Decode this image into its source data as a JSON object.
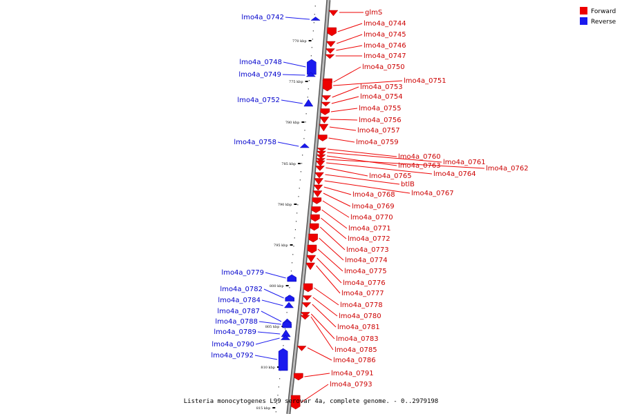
{
  "caption": "Listeria monocytogenes L99 serovar 4a, complete genome. - 0..2979198",
  "legend": [
    {
      "label": "Forward",
      "color": "#ee0000"
    },
    {
      "label": "Reverse",
      "color": "#1a1aee"
    }
  ],
  "colors": {
    "forward": "#ee0000",
    "reverse": "#1a1aee",
    "backbone": "#888888"
  },
  "scale_ticks": [
    "770 kbp",
    "775 kbp",
    "780 kbp",
    "785 kbp",
    "790 kbp",
    "795 kbp",
    "800 kbp",
    "805 kbp",
    "810 kbp",
    "815 kbp"
  ],
  "forward_genes": [
    "glmS",
    "lmo4a_0744",
    "lmo4a_0745",
    "lmo4a_0746",
    "lmo4a_0747",
    "lmo4a_0750",
    "lmo4a_0751",
    "lmo4a_0753",
    "lmo4a_0754",
    "lmo4a_0755",
    "lmo4a_0756",
    "lmo4a_0757",
    "lmo4a_0759",
    "lmo4a_0760",
    "lmo4a_0761",
    "lmo4a_0763",
    "lmo4a_0762",
    "lmo4a_0764",
    "lmo4a_0765",
    "btlB",
    "lmo4a_0767",
    "lmo4a_0768",
    "lmo4a_0769",
    "lmo4a_0770",
    "lmo4a_0771",
    "lmo4a_0772",
    "lmo4a_0773",
    "lmo4a_0774",
    "lmo4a_0775",
    "lmo4a_0776",
    "lmo4a_0777",
    "lmo4a_0778",
    "lmo4a_0780",
    "lmo4a_0781",
    "lmo4a_0783",
    "lmo4a_0785",
    "lmo4a_0786",
    "lmo4a_0791",
    "lmo4a_0793"
  ],
  "reverse_genes": [
    "lmo4a_0742",
    "lmo4a_0748",
    "lmo4a_0749",
    "lmo4a_0752",
    "lmo4a_0758",
    "lmo4a_0779",
    "lmo4a_0782",
    "lmo4a_0784",
    "lmo4a_0787",
    "lmo4a_0788",
    "lmo4a_0789",
    "lmo4a_0790",
    "lmo4a_0792"
  ]
}
